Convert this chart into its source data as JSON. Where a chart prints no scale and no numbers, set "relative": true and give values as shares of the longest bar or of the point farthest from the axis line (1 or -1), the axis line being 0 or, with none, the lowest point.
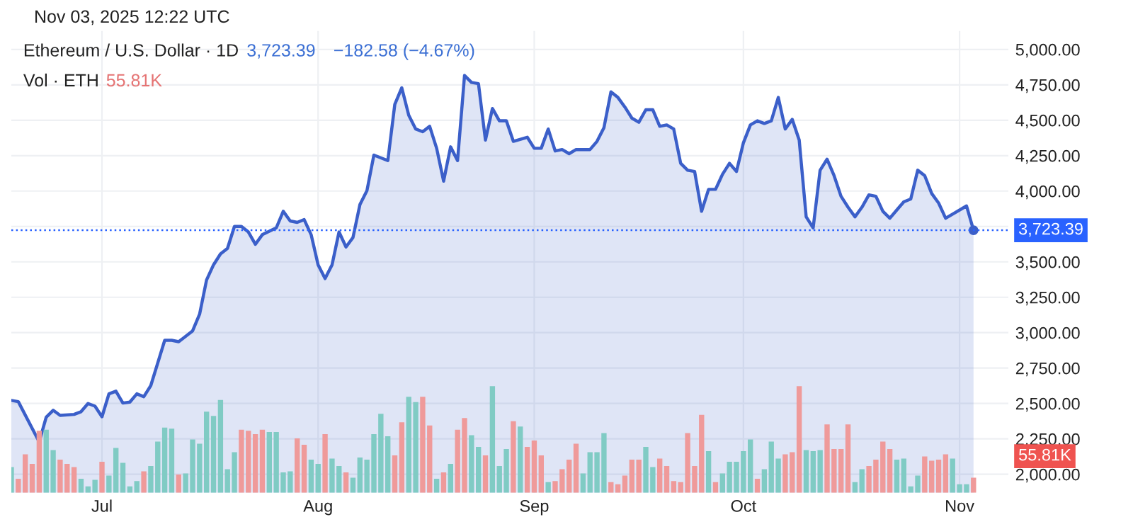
{
  "chart_data": [
    {
      "type": "area",
      "title": "Ethereum / U.S. Dollar · 1D",
      "annotations": [
        "3,723.39",
        "−182.58 (−4.67%)",
        "Nov 03, 2025 12:22 UTC"
      ],
      "xlim": [
        "2025-06-18",
        "2025-11-08"
      ],
      "ylim": [
        1870,
        5130
      ],
      "xticks": [
        {
          "value": "2025-07-01",
          "label": "Jul"
        },
        {
          "value": "2025-08-01",
          "label": "Aug"
        },
        {
          "value": "2025-09-01",
          "label": "Sep"
        },
        {
          "value": "2025-10-01",
          "label": "Oct"
        },
        {
          "value": "2025-11-01",
          "label": "Nov"
        }
      ],
      "yticks": [
        {
          "value": 2000,
          "label": "2,000.00"
        },
        {
          "value": 2250,
          "label": "2,250.00"
        },
        {
          "value": 2500,
          "label": "2,500.00"
        },
        {
          "value": 2750,
          "label": "2,750.00"
        },
        {
          "value": 3000,
          "label": "3,000.00"
        },
        {
          "value": 3250,
          "label": "3,250.00"
        },
        {
          "value": 3500,
          "label": "3,500.00"
        },
        {
          "value": 3750,
          "label": null
        },
        {
          "value": 4000,
          "label": "4,000.00"
        },
        {
          "value": 4250,
          "label": "4,250.00"
        },
        {
          "value": 4500,
          "label": "4,500.00"
        },
        {
          "value": 4750,
          "label": "4,750.00"
        },
        {
          "value": 5000,
          "label": "5,000.00"
        }
      ],
      "grid": true,
      "ref_lines": [
        {
          "axis": "y",
          "value": 3723.39,
          "label": "3,723.39",
          "color": "#2962ff",
          "line_style": "dotted"
        }
      ],
      "series": [
        {
          "color": "#3b5fc9",
          "type": "area",
          "x": [
            "2025-06-18",
            "2025-06-19",
            "2025-06-22",
            "2025-06-23",
            "2025-06-24",
            "2025-06-25",
            "2025-06-27",
            "2025-06-28",
            "2025-06-29",
            "2025-06-30",
            "2025-07-01",
            "2025-07-02",
            "2025-07-03",
            "2025-07-04",
            "2025-07-05",
            "2025-07-06",
            "2025-07-07",
            "2025-07-08",
            "2025-07-10",
            "2025-07-11",
            "2025-07-12",
            "2025-07-14",
            "2025-07-15",
            "2025-07-16",
            "2025-07-17",
            "2025-07-18",
            "2025-07-19",
            "2025-07-20",
            "2025-07-21",
            "2025-07-22",
            "2025-07-23",
            "2025-07-24",
            "2025-07-26",
            "2025-07-27",
            "2025-07-28",
            "2025-07-29",
            "2025-07-30",
            "2025-07-31",
            "2025-08-01",
            "2025-08-02",
            "2025-08-03",
            "2025-08-04",
            "2025-08-05",
            "2025-08-06",
            "2025-08-07",
            "2025-08-08",
            "2025-08-09",
            "2025-08-11",
            "2025-08-12",
            "2025-08-13",
            "2025-08-14",
            "2025-08-15",
            "2025-08-16",
            "2025-08-17",
            "2025-08-18",
            "2025-08-19",
            "2025-08-20",
            "2025-08-21",
            "2025-08-22",
            "2025-08-23",
            "2025-08-24",
            "2025-08-25",
            "2025-08-26",
            "2025-08-27",
            "2025-08-28",
            "2025-08-29",
            "2025-08-31",
            "2025-09-01",
            "2025-09-02",
            "2025-09-03",
            "2025-09-04",
            "2025-09-05",
            "2025-09-06",
            "2025-09-07",
            "2025-09-09",
            "2025-09-10",
            "2025-09-11",
            "2025-09-12",
            "2025-09-13",
            "2025-09-14",
            "2025-09-15",
            "2025-09-16",
            "2025-09-17",
            "2025-09-18",
            "2025-09-19",
            "2025-09-20",
            "2025-09-21",
            "2025-09-22",
            "2025-09-23",
            "2025-09-24",
            "2025-09-25",
            "2025-09-26",
            "2025-09-27",
            "2025-09-28",
            "2025-09-29",
            "2025-09-30",
            "2025-10-01",
            "2025-10-02",
            "2025-10-03",
            "2025-10-04",
            "2025-10-05",
            "2025-10-06",
            "2025-10-07",
            "2025-10-08",
            "2025-10-09",
            "2025-10-10",
            "2025-10-11",
            "2025-10-12",
            "2025-10-13",
            "2025-10-14",
            "2025-10-15",
            "2025-10-16",
            "2025-10-17",
            "2025-10-18",
            "2025-10-19",
            "2025-10-20",
            "2025-10-21",
            "2025-10-22",
            "2025-10-23",
            "2025-10-24",
            "2025-10-25",
            "2025-10-26",
            "2025-10-27",
            "2025-10-28",
            "2025-10-29",
            "2025-10-30",
            "2025-10-31",
            "2025-11-02",
            "2025-11-03"
          ],
          "values": [
            2522,
            2513,
            2229,
            2403,
            2452,
            2416,
            2423,
            2442,
            2500,
            2481,
            2406,
            2568,
            2587,
            2503,
            2510,
            2568,
            2548,
            2626,
            2946,
            2946,
            2936,
            3013,
            3130,
            3372,
            3479,
            3556,
            3595,
            3750,
            3750,
            3711,
            3624,
            3692,
            3740,
            3857,
            3789,
            3779,
            3798,
            3692,
            3479,
            3382,
            3479,
            3711,
            3605,
            3672,
            3905,
            4002,
            4254,
            4215,
            4612,
            4729,
            4535,
            4438,
            4419,
            4457,
            4302,
            4070,
            4312,
            4215,
            4816,
            4767,
            4758,
            4360,
            4583,
            4496,
            4496,
            4351,
            4380,
            4302,
            4302,
            4438,
            4283,
            4293,
            4264,
            4293,
            4293,
            4351,
            4448,
            4700,
            4661,
            4593,
            4515,
            4486,
            4574,
            4574,
            4457,
            4467,
            4438,
            4196,
            4147,
            4138,
            3857,
            4012,
            4012,
            4118,
            4196,
            4138,
            4341,
            4467,
            4496,
            4477,
            4496,
            4661,
            4438,
            4506,
            4360,
            3818,
            3740,
            4147,
            4225,
            4109,
            3963,
            3886,
            3818,
            3886,
            3973,
            3963,
            3857,
            3808,
            3866,
            3924,
            3944,
            4147,
            4109,
            3983,
            3915,
            3808,
            3837,
            3895,
            3723.39
          ]
        }
      ]
    },
    {
      "type": "bar",
      "relative": true,
      "annotations": [
        "Vol · ETH",
        "55.81K",
        "55.81K"
      ],
      "categories": [
        null,
        null,
        null,
        null,
        null,
        null,
        null,
        null,
        null,
        null,
        null,
        null,
        null,
        null,
        null,
        null,
        null,
        null,
        null,
        null,
        null,
        null,
        null,
        null,
        null,
        null,
        null,
        null,
        null,
        null,
        null,
        null,
        null,
        null,
        null,
        null,
        null,
        null,
        null,
        null,
        null,
        null,
        null,
        null,
        null,
        null,
        null,
        null,
        null,
        null,
        null,
        null,
        null,
        null,
        null,
        null,
        null,
        null,
        null,
        null,
        null,
        null,
        null,
        null,
        null,
        null,
        null,
        null,
        null,
        null,
        null,
        null,
        null,
        null,
        null,
        null,
        null,
        null,
        null,
        null,
        null,
        null,
        null,
        null,
        null,
        null,
        null,
        null,
        null,
        null,
        null,
        null,
        null,
        null,
        null,
        null,
        null,
        null,
        null,
        null,
        null,
        null,
        null,
        null,
        null,
        null,
        null,
        null,
        null,
        null,
        null,
        null,
        null,
        null,
        null,
        null,
        null,
        null,
        null,
        null,
        null,
        null,
        null,
        null,
        null,
        null,
        null,
        null,
        null,
        null,
        null,
        null,
        null,
        null,
        null,
        null,
        null,
        null,
        null
      ],
      "values": [
        0.24,
        0.13,
        0.36,
        0.27,
        0.58,
        0.59,
        0.4,
        0.31,
        0.27,
        0.24,
        0.13,
        0.06,
        0.12,
        0.29,
        0.16,
        0.42,
        0.28,
        0.06,
        0.11,
        0.2,
        0.25,
        0.48,
        0.61,
        0.6,
        0.17,
        0.18,
        0.5,
        0.46,
        0.76,
        0.72,
        0.87,
        0.22,
        0.38,
        0.59,
        0.58,
        0.55,
        0.59,
        0.57,
        0.57,
        0.19,
        0.2,
        0.51,
        0.45,
        0.31,
        0.27,
        0.55,
        0.32,
        0.25,
        0.19,
        0.14,
        0.33,
        0.31,
        0.55,
        0.74,
        0.53,
        0.35,
        0.66,
        0.9,
        0.85,
        0.9,
        0.63,
        0.13,
        0.19,
        0.27,
        0.59,
        0.7,
        0.54,
        0.43,
        0.35,
        1,
        0.25,
        0.41,
        0.67,
        0.62,
        0.43,
        0.49,
        0.35,
        0.1,
        0.11,
        0.22,
        0.31,
        0.46,
        0.18,
        0.38,
        0.38,
        0.56,
        0.1,
        0.08,
        0.16,
        0.31,
        0.31,
        0.43,
        0.24,
        0.32,
        0.25,
        0.11,
        0.1,
        0.56,
        0.25,
        0.73,
        0.39,
        0.1,
        0.18,
        0.29,
        0.29,
        0.39,
        0.5,
        0.13,
        0.22,
        0.48,
        0.32,
        0.36,
        0.38,
        1,
        0.4,
        0.39,
        0.4,
        0.64,
        0.41,
        0.41,
        0.64,
        0.1,
        0.22,
        0.25,
        0.31,
        0.48,
        0.41,
        0.31,
        0.32,
        0.06,
        0.16,
        0.34,
        0.3,
        0.31,
        0.36,
        0.32,
        0.08,
        0.08,
        0.14
      ],
      "colors": [
        "#80cbc4",
        "#ef9a9a",
        "#ef9a9a",
        "#ef9a9a",
        "#ef9a9a",
        "#80cbc4",
        "#80cbc4",
        "#ef9a9a",
        "#ef9a9a",
        "#ef9a9a",
        "#80cbc4",
        "#80cbc4",
        "#80cbc4",
        "#ef9a9a",
        "#80cbc4",
        "#80cbc4",
        "#80cbc4",
        "#80cbc4",
        "#80cbc4",
        "#ef9a9a",
        "#80cbc4",
        "#80cbc4",
        "#80cbc4",
        "#80cbc4",
        "#ef9a9a",
        "#80cbc4",
        "#80cbc4",
        "#80cbc4",
        "#80cbc4",
        "#80cbc4",
        "#80cbc4",
        "#80cbc4",
        "#80cbc4",
        "#ef9a9a",
        "#ef9a9a",
        "#ef9a9a",
        "#ef9a9a",
        "#80cbc4",
        "#80cbc4",
        "#80cbc4",
        "#80cbc4",
        "#ef9a9a",
        "#ef9a9a",
        "#80cbc4",
        "#80cbc4",
        "#ef9a9a",
        "#80cbc4",
        "#80cbc4",
        "#ef9a9a",
        "#80cbc4",
        "#80cbc4",
        "#80cbc4",
        "#80cbc4",
        "#80cbc4",
        "#80cbc4",
        "#ef9a9a",
        "#ef9a9a",
        "#80cbc4",
        "#80cbc4",
        "#ef9a9a",
        "#ef9a9a",
        "#80cbc4",
        "#ef9a9a",
        "#80cbc4",
        "#ef9a9a",
        "#ef9a9a",
        "#80cbc4",
        "#80cbc4",
        "#ef9a9a",
        "#80cbc4",
        "#80cbc4",
        "#80cbc4",
        "#ef9a9a",
        "#80cbc4",
        "#ef9a9a",
        "#ef9a9a",
        "#ef9a9a",
        "#80cbc4",
        "#ef9a9a",
        "#ef9a9a",
        "#ef9a9a",
        "#ef9a9a",
        "#80cbc4",
        "#80cbc4",
        "#80cbc4",
        "#80cbc4",
        "#ef9a9a",
        "#ef9a9a",
        "#ef9a9a",
        "#ef9a9a",
        "#ef9a9a",
        "#80cbc4",
        "#80cbc4",
        "#ef9a9a",
        "#ef9a9a",
        "#ef9a9a",
        "#ef9a9a",
        "#ef9a9a",
        "#ef9a9a",
        "#ef9a9a",
        "#80cbc4",
        "#ef9a9a",
        "#80cbc4",
        "#80cbc4",
        "#80cbc4",
        "#80cbc4",
        "#80cbc4",
        "#ef9a9a",
        "#80cbc4",
        "#80cbc4",
        "#80cbc4",
        "#ef9a9a",
        "#ef9a9a",
        "#ef9a9a",
        "#80cbc4",
        "#80cbc4",
        "#80cbc4",
        "#ef9a9a",
        "#ef9a9a",
        "#ef9a9a",
        "#ef9a9a",
        "#80cbc4",
        "#80cbc4",
        "#ef9a9a",
        "#ef9a9a",
        "#ef9a9a",
        "#ef9a9a",
        "#80cbc4",
        "#80cbc4",
        "#80cbc4",
        "#80cbc4",
        "#ef9a9a",
        "#ef9a9a",
        "#ef9a9a",
        "#ef9a9a",
        "#80cbc4",
        "#80cbc4",
        "#80cbc4",
        "#ef9a9a"
      ]
    }
  ]
}
